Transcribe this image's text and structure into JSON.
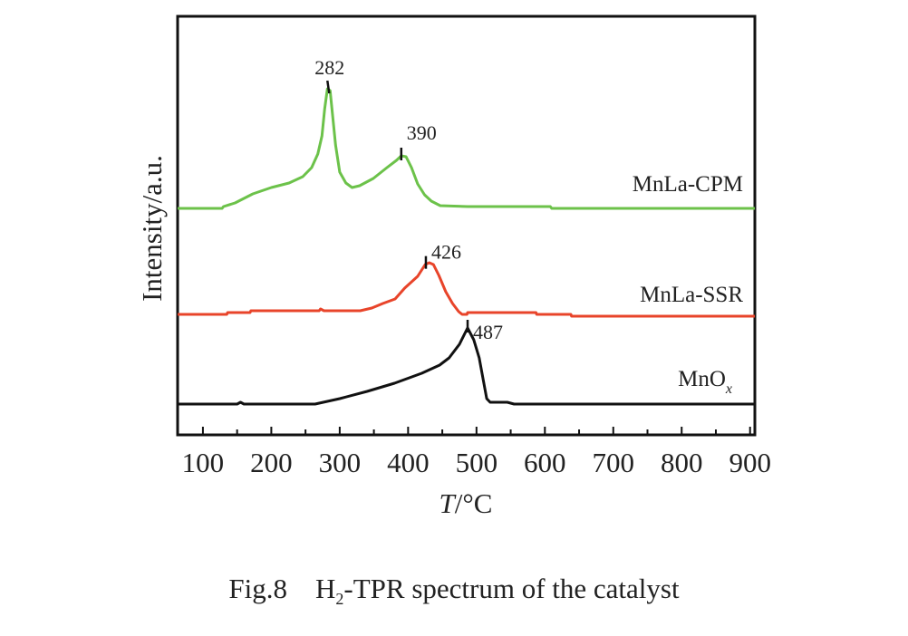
{
  "chart_data": {
    "type": "line",
    "title": "",
    "xlabel": "T/°C",
    "xlabel_italic_part": "T",
    "xlabel_rest": "/°C",
    "ylabel": "Intensity/a.u.",
    "xlim": [
      63,
      907
    ],
    "ylim": [
      0,
      46.2
    ],
    "xticks": [
      100,
      200,
      300,
      400,
      500,
      600,
      700,
      800,
      900
    ],
    "xtick_labels": [
      "100",
      "200",
      "300",
      "400",
      "500",
      "600",
      "700",
      "800",
      "900"
    ],
    "minor_xticks": [
      150,
      250,
      350,
      450,
      550,
      650,
      750,
      850
    ],
    "grid": false,
    "legend": "inline-labels-right",
    "series": [
      {
        "name": "MnLa-CPM",
        "color": "#6cc24a",
        "peaks": [
          282,
          390
        ],
        "x": [
          63,
          128,
          130,
          147,
          173,
          200,
          226,
          246,
          259,
          268,
          274,
          278,
          282,
          286,
          290,
          294,
          300,
          309,
          318,
          329,
          349,
          369,
          383,
          390,
          397,
          405,
          414,
          424,
          434,
          447,
          487,
          608,
          610,
          907
        ],
        "y": [
          25.0,
          25.0,
          25.2,
          25.6,
          26.6,
          27.3,
          27.8,
          28.5,
          29.5,
          31.0,
          33.0,
          36.0,
          38.2,
          38.0,
          35.0,
          32.0,
          29.0,
          27.8,
          27.3,
          27.5,
          28.3,
          29.5,
          30.3,
          30.8,
          30.7,
          29.5,
          27.7,
          26.5,
          25.8,
          25.3,
          25.2,
          25.2,
          25.0,
          25.0
        ]
      },
      {
        "name": "MnLa-SSR",
        "color": "#e8442a",
        "peaks": [
          426
        ],
        "x": [
          63,
          135,
          136,
          169,
          170,
          270,
          272,
          277,
          279,
          330,
          347,
          363,
          381,
          395,
          414,
          425,
          431,
          437,
          445,
          455,
          465,
          474,
          479,
          486,
          487,
          587,
          588,
          638,
          639,
          907
        ],
        "y": [
          13.3,
          13.3,
          13.5,
          13.5,
          13.7,
          13.7,
          13.9,
          13.7,
          13.7,
          13.7,
          14.0,
          14.5,
          15.0,
          16.2,
          17.5,
          18.8,
          19.0,
          18.8,
          17.6,
          15.8,
          14.5,
          13.6,
          13.3,
          13.3,
          13.5,
          13.5,
          13.3,
          13.3,
          13.1,
          13.1
        ]
      },
      {
        "name": "MnOx",
        "name_base": "MnO",
        "name_sub": "x",
        "color": "#111111",
        "peaks": [
          487
        ],
        "x": [
          63,
          150,
          155,
          160,
          264,
          300,
          340,
          380,
          420,
          446,
          460,
          475,
          487,
          496,
          504,
          510,
          515,
          520,
          530,
          545,
          555,
          907
        ],
        "y": [
          3.4,
          3.4,
          3.6,
          3.4,
          3.4,
          4.0,
          4.8,
          5.7,
          6.8,
          7.7,
          8.5,
          10.0,
          11.8,
          10.5,
          8.5,
          6.0,
          4.0,
          3.6,
          3.6,
          3.6,
          3.4,
          3.4
        ]
      }
    ],
    "annotations": [
      {
        "series": "MnLa-CPM",
        "x": 282,
        "text": "282"
      },
      {
        "series": "MnLa-CPM",
        "x": 390,
        "text": "390"
      },
      {
        "series": "MnLa-SSR",
        "x": 426,
        "text": "426"
      },
      {
        "series": "MnOx",
        "x": 487,
        "text": "487"
      }
    ]
  },
  "caption": {
    "fig_label": "Fig.8",
    "text_pre": "H",
    "text_sub": "2",
    "text_post": "-TPR spectrum of the catalyst"
  }
}
